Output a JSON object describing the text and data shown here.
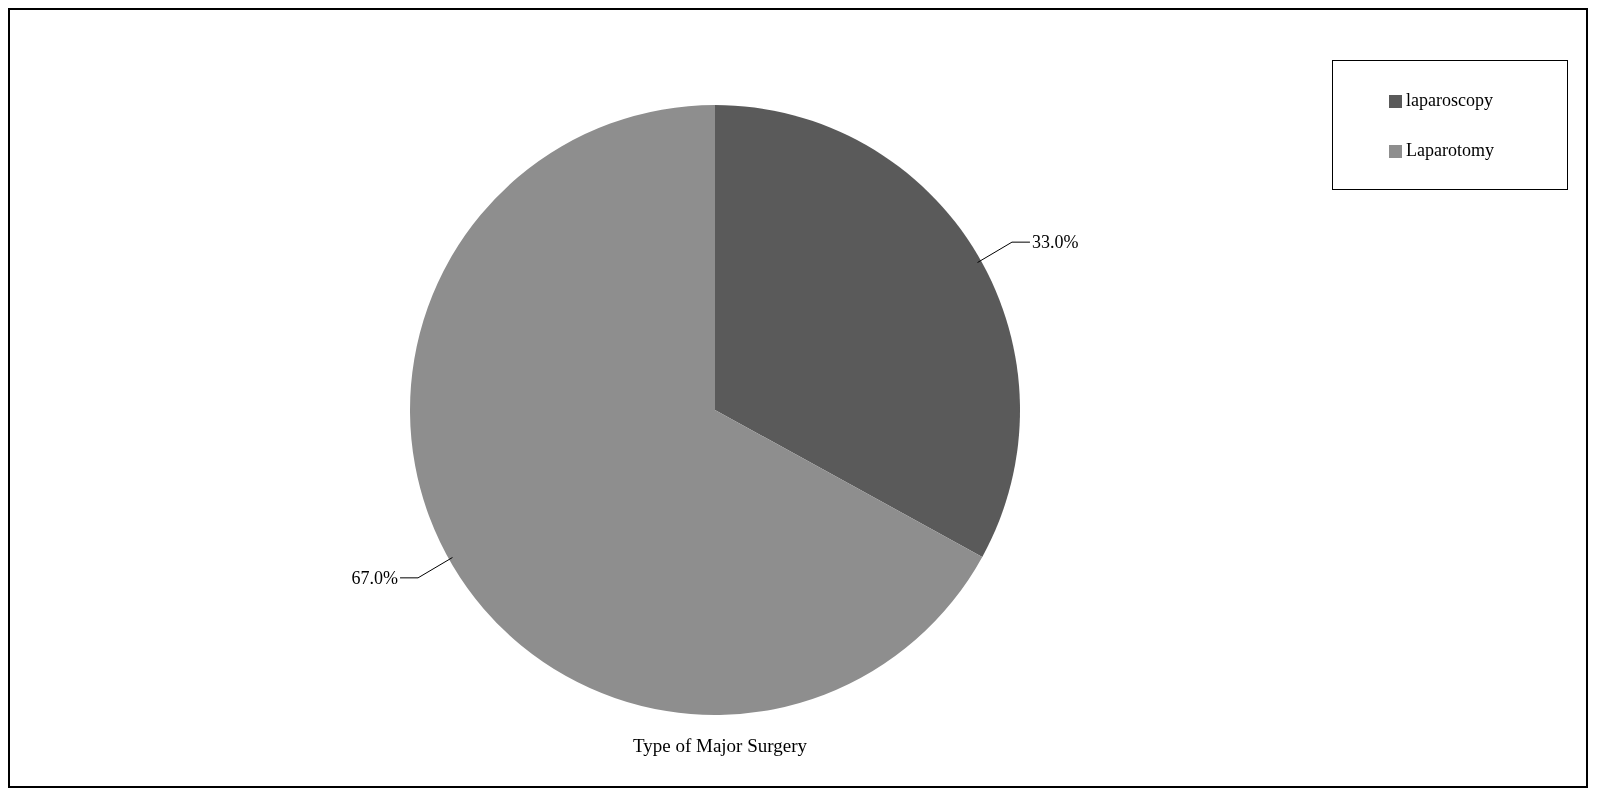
{
  "chart_data": {
    "type": "pie",
    "title": "Type of Major Surgery",
    "categories": [
      "laparoscopy",
      "Laparotomy"
    ],
    "values": [
      33.0,
      67.0
    ],
    "colors": [
      "#5a5a5a",
      "#8e8e8e"
    ],
    "value_labels": [
      "33.0%",
      "67.0%"
    ],
    "legend": "top right"
  }
}
